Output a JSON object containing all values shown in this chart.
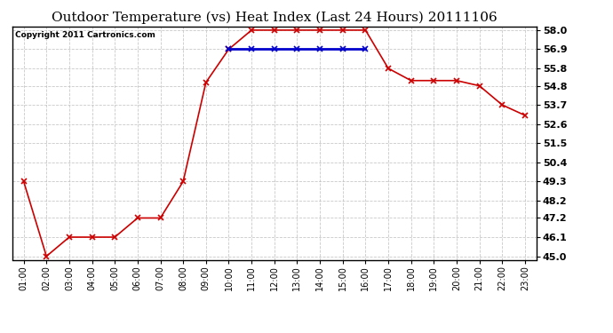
{
  "title": "Outdoor Temperature (vs) Heat Index (Last 24 Hours) 20111106",
  "copyright": "Copyright 2011 Cartronics.com",
  "x_labels": [
    "01:00",
    "02:00",
    "03:00",
    "04:00",
    "05:00",
    "06:00",
    "07:00",
    "08:00",
    "09:00",
    "10:00",
    "11:00",
    "12:00",
    "13:00",
    "14:00",
    "15:00",
    "16:00",
    "17:00",
    "18:00",
    "19:00",
    "20:00",
    "21:00",
    "22:00",
    "23:00"
  ],
  "temp_data": [
    49.3,
    45.0,
    46.1,
    46.1,
    46.1,
    47.2,
    47.2,
    49.3,
    55.0,
    56.9,
    58.0,
    58.0,
    58.0,
    58.0,
    58.0,
    58.0,
    55.8,
    55.1,
    55.1,
    55.1,
    54.8,
    53.7,
    53.1
  ],
  "heat_data": [
    null,
    null,
    null,
    null,
    null,
    null,
    null,
    null,
    null,
    56.9,
    56.9,
    56.9,
    56.9,
    56.9,
    56.9,
    56.9,
    null,
    null,
    null,
    null,
    null,
    null,
    null
  ],
  "temp_color": "#cc0000",
  "heat_color": "#0000cc",
  "bg_color": "#ffffff",
  "plot_bg_color": "#ffffff",
  "grid_color": "#bbbbbb",
  "ylim_min": 45.0,
  "ylim_max": 58.0,
  "ytick_values": [
    45.0,
    46.1,
    47.2,
    48.2,
    49.3,
    50.4,
    51.5,
    52.6,
    53.7,
    54.8,
    55.8,
    56.9,
    58.0
  ],
  "marker": "x",
  "linewidth": 1.2,
  "marker_size": 4,
  "title_fontsize": 11,
  "copyright_fontsize": 6.5,
  "tick_fontsize": 7,
  "ytick_fontsize": 8
}
